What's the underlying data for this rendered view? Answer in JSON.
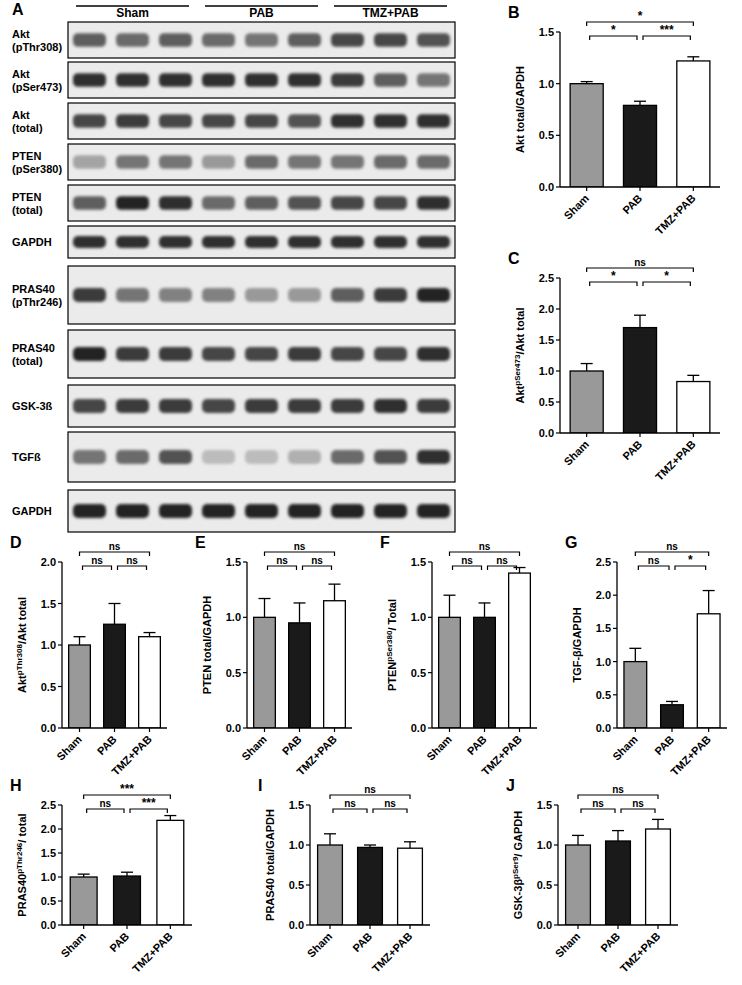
{
  "blot": {
    "panel": "A",
    "groups": [
      "Sham",
      "PAB",
      "TMZ+PAB"
    ],
    "lanes_per_group": 3,
    "rows": [
      {
        "label": [
          "Akt",
          "(pThr308)"
        ],
        "bands": [
          0.6,
          0.55,
          0.6,
          0.55,
          0.5,
          0.6,
          0.7,
          0.7,
          0.65
        ]
      },
      {
        "label": [
          "Akt",
          "(pSer473)"
        ],
        "bands": [
          0.8,
          0.8,
          0.8,
          0.8,
          0.8,
          0.8,
          0.75,
          0.6,
          0.5
        ]
      },
      {
        "label": [
          "Akt",
          "(total)"
        ],
        "bands": [
          0.7,
          0.75,
          0.7,
          0.7,
          0.7,
          0.65,
          0.8,
          0.8,
          0.8
        ]
      },
      {
        "label": [
          "PTEN",
          "(pSer380)"
        ],
        "bands": [
          0.3,
          0.5,
          0.5,
          0.35,
          0.55,
          0.5,
          0.5,
          0.55,
          0.55
        ]
      },
      {
        "label": [
          "PTEN",
          "(total)"
        ],
        "bands": [
          0.6,
          0.85,
          0.8,
          0.55,
          0.6,
          0.65,
          0.7,
          0.7,
          0.8
        ]
      },
      {
        "label": [
          "GAPDH"
        ],
        "bands": [
          0.8,
          0.8,
          0.8,
          0.8,
          0.8,
          0.8,
          0.8,
          0.8,
          0.8
        ]
      },
      {
        "label": [
          "PRAS40",
          "(pThr246)"
        ],
        "bands": [
          0.75,
          0.5,
          0.45,
          0.45,
          0.35,
          0.35,
          0.6,
          0.75,
          0.85
        ]
      },
      {
        "label": [
          "PRAS40",
          "(total)"
        ],
        "bands": [
          0.85,
          0.75,
          0.75,
          0.7,
          0.7,
          0.75,
          0.7,
          0.7,
          0.8
        ]
      },
      {
        "label": [
          "GSK-3ß"
        ],
        "bands": [
          0.7,
          0.75,
          0.75,
          0.7,
          0.75,
          0.75,
          0.75,
          0.8,
          0.75
        ]
      },
      {
        "label": [
          "TGFß"
        ],
        "bands": [
          0.5,
          0.55,
          0.65,
          0.2,
          0.2,
          0.25,
          0.55,
          0.65,
          0.8
        ]
      },
      {
        "label": [
          "GAPDH"
        ],
        "bands": [
          0.85,
          0.85,
          0.85,
          0.85,
          0.85,
          0.85,
          0.85,
          0.85,
          0.85
        ]
      }
    ]
  },
  "chart_data": [
    {
      "type": "bar",
      "panel": "B",
      "ylabel": [
        "Akt total/GAPDH"
      ],
      "categories": [
        "Sham",
        "PAB",
        "TMZ+PAB"
      ],
      "values": [
        1.0,
        0.79,
        1.22
      ],
      "errors": [
        0.02,
        0.04,
        0.04
      ],
      "colors": [
        "#999999",
        "#1a1a1a",
        "#ffffff"
      ],
      "ylim": [
        0,
        1.5
      ],
      "yticks": [
        {
          "value": 0,
          "label": "0.0"
        },
        {
          "value": 0.5,
          "label": "0.5"
        },
        {
          "value": 1,
          "label": "1.0"
        },
        {
          "value": 1.5,
          "label": "1.5"
        }
      ],
      "significance": [
        {
          "pair": [
            0,
            2
          ],
          "label": "*"
        },
        {
          "pair": [
            0,
            1
          ],
          "label": "*"
        },
        {
          "pair": [
            1,
            2
          ],
          "label": "***"
        }
      ]
    },
    {
      "type": "bar",
      "panel": "C",
      "ylabel": [
        "Akt",
        "pSer473",
        "/Akt total"
      ],
      "categories": [
        "Sham",
        "PAB",
        "TMZ+PAB"
      ],
      "values": [
        1.0,
        1.7,
        0.83
      ],
      "errors": [
        0.12,
        0.2,
        0.1
      ],
      "colors": [
        "#999999",
        "#1a1a1a",
        "#ffffff"
      ],
      "ylim": [
        0,
        2.5
      ],
      "yticks": [
        {
          "value": 0,
          "label": "0.0"
        },
        {
          "value": 0.5,
          "label": "0.5"
        },
        {
          "value": 1,
          "label": "1.0"
        },
        {
          "value": 1.5,
          "label": "1.5"
        },
        {
          "value": 2,
          "label": "2.0"
        },
        {
          "value": 2.5,
          "label": "2.5"
        }
      ],
      "significance": [
        {
          "pair": [
            0,
            2
          ],
          "label": "ns"
        },
        {
          "pair": [
            0,
            1
          ],
          "label": "*"
        },
        {
          "pair": [
            1,
            2
          ],
          "label": "*"
        }
      ]
    },
    {
      "type": "bar",
      "panel": "D",
      "ylabel": [
        "Akt",
        "pThr308",
        "/Akt total"
      ],
      "categories": [
        "Sham",
        "PAB",
        "TMZ+PAB"
      ],
      "values": [
        1.0,
        1.25,
        1.1
      ],
      "errors": [
        0.1,
        0.25,
        0.05
      ],
      "colors": [
        "#999999",
        "#1a1a1a",
        "#ffffff"
      ],
      "ylim": [
        0,
        2
      ],
      "yticks": [
        {
          "value": 0,
          "label": "0.0"
        },
        {
          "value": 0.5,
          "label": "0.5"
        },
        {
          "value": 1,
          "label": "1.0"
        },
        {
          "value": 1.5,
          "label": "1.5"
        },
        {
          "value": 2,
          "label": "2.0"
        }
      ],
      "significance": [
        {
          "pair": [
            0,
            2
          ],
          "label": "ns"
        },
        {
          "pair": [
            0,
            1
          ],
          "label": "ns"
        },
        {
          "pair": [
            1,
            2
          ],
          "label": "ns"
        }
      ]
    },
    {
      "type": "bar",
      "panel": "E",
      "ylabel": [
        "PTEN total/GAPDH"
      ],
      "categories": [
        "Sham",
        "PAB",
        "TMZ+PAB"
      ],
      "values": [
        1.0,
        0.95,
        1.15
      ],
      "errors": [
        0.17,
        0.18,
        0.15
      ],
      "colors": [
        "#999999",
        "#1a1a1a",
        "#ffffff"
      ],
      "ylim": [
        0,
        1.5
      ],
      "yticks": [
        {
          "value": 0,
          "label": "0.0"
        },
        {
          "value": 0.5,
          "label": "0.5"
        },
        {
          "value": 1,
          "label": "1.0"
        },
        {
          "value": 1.5,
          "label": "1.5"
        }
      ],
      "significance": [
        {
          "pair": [
            0,
            2
          ],
          "label": "ns"
        },
        {
          "pair": [
            0,
            1
          ],
          "label": "ns"
        },
        {
          "pair": [
            1,
            2
          ],
          "label": "ns"
        }
      ]
    },
    {
      "type": "bar",
      "panel": "F",
      "ylabel": [
        "PTEN",
        "pSer380",
        "/ Total"
      ],
      "categories": [
        "Sham",
        "PAB",
        "TMZ+PAB"
      ],
      "values": [
        1.0,
        1.0,
        1.4
      ],
      "errors": [
        0.2,
        0.13,
        0.05
      ],
      "colors": [
        "#999999",
        "#1a1a1a",
        "#ffffff"
      ],
      "ylim": [
        0,
        1.5
      ],
      "yticks": [
        {
          "value": 0,
          "label": "0.0"
        },
        {
          "value": 0.5,
          "label": "0.5"
        },
        {
          "value": 1,
          "label": "1.0"
        },
        {
          "value": 1.5,
          "label": "1.5"
        }
      ],
      "significance": [
        {
          "pair": [
            0,
            2
          ],
          "label": "ns"
        },
        {
          "pair": [
            0,
            1
          ],
          "label": "ns"
        },
        {
          "pair": [
            1,
            2
          ],
          "label": "ns"
        }
      ]
    },
    {
      "type": "bar",
      "panel": "G",
      "ylabel": [
        "TGF-β/GAPDH"
      ],
      "categories": [
        "Sham",
        "PAB",
        "TMZ+PAB"
      ],
      "values": [
        1.0,
        0.35,
        1.72
      ],
      "errors": [
        0.2,
        0.05,
        0.35
      ],
      "colors": [
        "#999999",
        "#1a1a1a",
        "#ffffff"
      ],
      "ylim": [
        0,
        2.5
      ],
      "yticks": [
        {
          "value": 0,
          "label": "0.0"
        },
        {
          "value": 0.5,
          "label": "0.5"
        },
        {
          "value": 1,
          "label": "1.0"
        },
        {
          "value": 1.5,
          "label": "1.5"
        },
        {
          "value": 2,
          "label": "2.0"
        },
        {
          "value": 2.5,
          "label": "2.5"
        }
      ],
      "significance": [
        {
          "pair": [
            0,
            2
          ],
          "label": "ns"
        },
        {
          "pair": [
            0,
            1
          ],
          "label": "ns"
        },
        {
          "pair": [
            1,
            2
          ],
          "label": "*"
        }
      ]
    },
    {
      "type": "bar",
      "panel": "H",
      "ylabel": [
        "PRAS40",
        "pThr246",
        "/ total"
      ],
      "categories": [
        "Sham",
        "PAB",
        "TMZ+PAB"
      ],
      "values": [
        1.0,
        1.02,
        2.18
      ],
      "errors": [
        0.06,
        0.08,
        0.1
      ],
      "colors": [
        "#999999",
        "#1a1a1a",
        "#ffffff"
      ],
      "ylim": [
        0,
        2.5
      ],
      "yticks": [
        {
          "value": 0,
          "label": "0.0"
        },
        {
          "value": 0.5,
          "label": "0.5"
        },
        {
          "value": 1,
          "label": "1.0"
        },
        {
          "value": 1.5,
          "label": "1.5"
        },
        {
          "value": 2,
          "label": "2.0"
        },
        {
          "value": 2.5,
          "label": "2.5"
        }
      ],
      "significance": [
        {
          "pair": [
            0,
            2
          ],
          "label": "***"
        },
        {
          "pair": [
            0,
            1
          ],
          "label": "ns"
        },
        {
          "pair": [
            1,
            2
          ],
          "label": "***"
        }
      ]
    },
    {
      "type": "bar",
      "panel": "I",
      "ylabel": [
        "PRAS40 total/GAPDH"
      ],
      "categories": [
        "Sham",
        "PAB",
        "TMZ+PAB"
      ],
      "values": [
        1.0,
        0.97,
        0.96
      ],
      "errors": [
        0.14,
        0.03,
        0.08
      ],
      "colors": [
        "#999999",
        "#1a1a1a",
        "#ffffff"
      ],
      "ylim": [
        0,
        1.5
      ],
      "yticks": [
        {
          "value": 0,
          "label": "0.0"
        },
        {
          "value": 0.5,
          "label": "0.5"
        },
        {
          "value": 1,
          "label": "1.0"
        },
        {
          "value": 1.5,
          "label": "1.5"
        }
      ],
      "significance": [
        {
          "pair": [
            0,
            2
          ],
          "label": "ns"
        },
        {
          "pair": [
            0,
            1
          ],
          "label": "ns"
        },
        {
          "pair": [
            1,
            2
          ],
          "label": "ns"
        }
      ]
    },
    {
      "type": "bar",
      "panel": "J",
      "ylabel": [
        "GSK-3β",
        "pSer9",
        "/ GAPDH"
      ],
      "categories": [
        "Sham",
        "PAB",
        "TMZ+PAB"
      ],
      "values": [
        1.0,
        1.05,
        1.2
      ],
      "errors": [
        0.12,
        0.13,
        0.12
      ],
      "colors": [
        "#999999",
        "#1a1a1a",
        "#ffffff"
      ],
      "ylim": [
        0,
        1.5
      ],
      "yticks": [
        {
          "value": 0,
          "label": "0.0"
        },
        {
          "value": 0.5,
          "label": "0.5"
        },
        {
          "value": 1,
          "label": "1.0"
        },
        {
          "value": 1.5,
          "label": "1.5"
        }
      ],
      "significance": [
        {
          "pair": [
            0,
            2
          ],
          "label": "ns"
        },
        {
          "pair": [
            0,
            1
          ],
          "label": "ns"
        },
        {
          "pair": [
            1,
            2
          ],
          "label": "ns"
        }
      ]
    }
  ]
}
